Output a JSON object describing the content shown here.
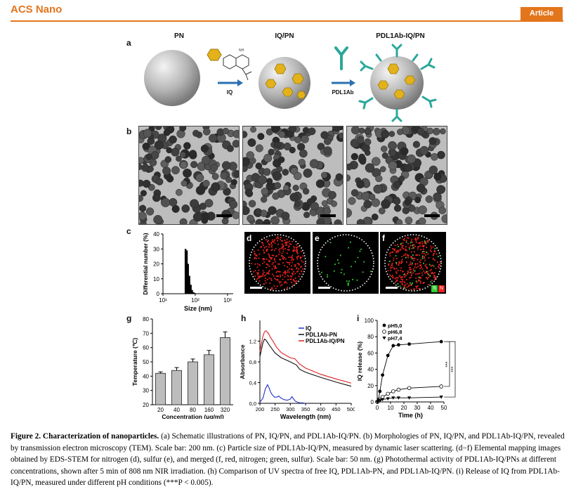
{
  "header": {
    "journal": "ACS Nano",
    "badge": "Article"
  },
  "panel_a": {
    "letter": "a",
    "labels": [
      "PN",
      "IQ/PN",
      "PDL1Ab-IQ/PN"
    ],
    "arrow1_label": "IQ",
    "arrow2_label": "PDL1Ab",
    "molecule_label": "NH"
  },
  "panel_b": {
    "letter": "b"
  },
  "panel_c": {
    "letter": "c",
    "chart_data": {
      "type": "bar",
      "xlabel": "Size (nm)",
      "ylabel": "Differential number (%)",
      "xscale": "log",
      "xlim": [
        10,
        1500
      ],
      "ylim": [
        0,
        40
      ],
      "yticks": [
        "0",
        "10",
        "20",
        "30",
        "40"
      ],
      "xticks": [
        "10¹",
        "10²",
        "10³"
      ],
      "x": [
        50,
        55,
        60,
        66,
        73,
        80,
        88,
        96
      ],
      "values": [
        30,
        29,
        20,
        12,
        6,
        2.5,
        1,
        0.5
      ]
    }
  },
  "panel_d": {
    "letter": "d",
    "colors": {
      "nitrogen": "#e8231f"
    }
  },
  "panel_e": {
    "letter": "e",
    "colors": {
      "sulfur": "#33cc33"
    }
  },
  "panel_f": {
    "letter": "f",
    "legend": [
      "S",
      "N"
    ]
  },
  "panel_g": {
    "letter": "g",
    "chart_data": {
      "type": "bar",
      "categories": [
        "20",
        "40",
        "80",
        "160",
        "320"
      ],
      "values": [
        42,
        44,
        50,
        55,
        67
      ],
      "errors": [
        1,
        2,
        2,
        3,
        4
      ],
      "xlabel": "Concentration (μg/ml)",
      "ylabel": "Temperature (℃)",
      "ylim": [
        20,
        80
      ],
      "yticks": [
        "20",
        "30",
        "40",
        "50",
        "60",
        "70",
        "80"
      ]
    }
  },
  "panel_h": {
    "letter": "h",
    "chart_data": {
      "type": "line",
      "xlabel": "Wavelength (nm)",
      "ylabel": "Absorbance",
      "xlim": [
        200,
        500
      ],
      "ylim": [
        0,
        1.6
      ],
      "xticks": [
        "200",
        "250",
        "300",
        "350",
        "400",
        "450",
        "500"
      ],
      "yticks": [
        "0,0",
        "0,4",
        "0,8",
        "1,2"
      ],
      "legend_position": "top-right",
      "series": [
        {
          "name": "IQ",
          "color": "#2233cc",
          "x": [
            200,
            210,
            218,
            225,
            230,
            235,
            240,
            248,
            255,
            262,
            270,
            280,
            290,
            300,
            305,
            310,
            315,
            320,
            325,
            330,
            340,
            350
          ],
          "values": [
            0.02,
            0.1,
            0.28,
            0.36,
            0.3,
            0.22,
            0.17,
            0.12,
            0.12,
            0.14,
            0.1,
            0.07,
            0.06,
            0.08,
            0.13,
            0.09,
            0.05,
            0.03,
            0.02,
            0.01,
            0.01,
            0.0
          ]
        },
        {
          "name": "PDL1Ab-PN",
          "color": "#111111",
          "x": [
            200,
            210,
            215,
            220,
            230,
            240,
            250,
            270,
            300,
            320,
            330,
            350,
            400,
            450,
            500
          ],
          "values": [
            0.9,
            1.17,
            1.24,
            1.22,
            1.13,
            1.05,
            0.97,
            0.88,
            0.8,
            0.74,
            0.66,
            0.6,
            0.5,
            0.41,
            0.33
          ]
        },
        {
          "name": "PDL1Ab-IQ/PN",
          "color": "#dd2222",
          "x": [
            200,
            210,
            215,
            220,
            228,
            235,
            245,
            255,
            270,
            290,
            300,
            315,
            330,
            350,
            400,
            450,
            500
          ],
          "values": [
            1.0,
            1.3,
            1.38,
            1.4,
            1.35,
            1.27,
            1.18,
            1.08,
            0.98,
            0.91,
            0.88,
            0.86,
            0.76,
            0.68,
            0.56,
            0.47,
            0.39
          ]
        }
      ]
    }
  },
  "panel_i": {
    "letter": "i",
    "chart_data": {
      "type": "line",
      "xlabel": "Time (h)",
      "ylabel": "IQ release (%)",
      "xlim": [
        0,
        50
      ],
      "ylim": [
        0,
        100
      ],
      "xticks": [
        "0",
        "10",
        "20",
        "30",
        "40",
        "50"
      ],
      "yticks": [
        "0",
        "20",
        "40",
        "60",
        "80",
        "100"
      ],
      "significance": [
        "***",
        "***"
      ],
      "series": [
        {
          "name": "pH5,0",
          "marker": "filled-circle",
          "x": [
            0,
            1,
            2,
            4,
            8,
            12,
            16,
            24,
            48
          ],
          "values": [
            0,
            3,
            13,
            33,
            57,
            69,
            70,
            71,
            74
          ]
        },
        {
          "name": "pH6,8",
          "marker": "open-circle",
          "x": [
            0,
            1,
            2,
            4,
            8,
            12,
            16,
            24,
            48
          ],
          "values": [
            0,
            1,
            3,
            6,
            10,
            13,
            15,
            17,
            19
          ]
        },
        {
          "name": "pH7,4",
          "marker": "filled-triangle",
          "x": [
            0,
            1,
            2,
            4,
            8,
            12,
            16,
            24,
            48
          ],
          "values": [
            0,
            1,
            2,
            3,
            4,
            5,
            5,
            5,
            6
          ]
        }
      ]
    }
  },
  "caption": {
    "title": "Figure 2. Characterization of nanoparticles.",
    "body": " (a) Schematic illustrations of PN, IQ/PN, and PDL1Ab-IQ/PN. (b) Morphologies of PN, IQ/PN, and PDL1Ab-IQ/PN, revealed by transmission electron microscopy (TEM). Scale bar: 200 nm. (c) Particle size of PDL1Ab-IQ/PN, measured by dynamic laser scattering. (d−f) Elemental mapping images obtained by EDS-STEM for nitrogen (d), sulfur (e), and merged (f, red, nitrogen; green, sulfur). Scale bar: 50 nm. (g) Photothermal activity of PDL1Ab-IQ/PNs at different concentrations, shown after 5 min of 808 nm NIR irradiation. (h) Comparison of UV spectra of free IQ, PDL1Ab-PN, and PDL1Ab-IQ/PN. (i) Release of IQ from PDL1Ab-IQ/PN, measured under different pH conditions (***P < 0.005)."
  }
}
